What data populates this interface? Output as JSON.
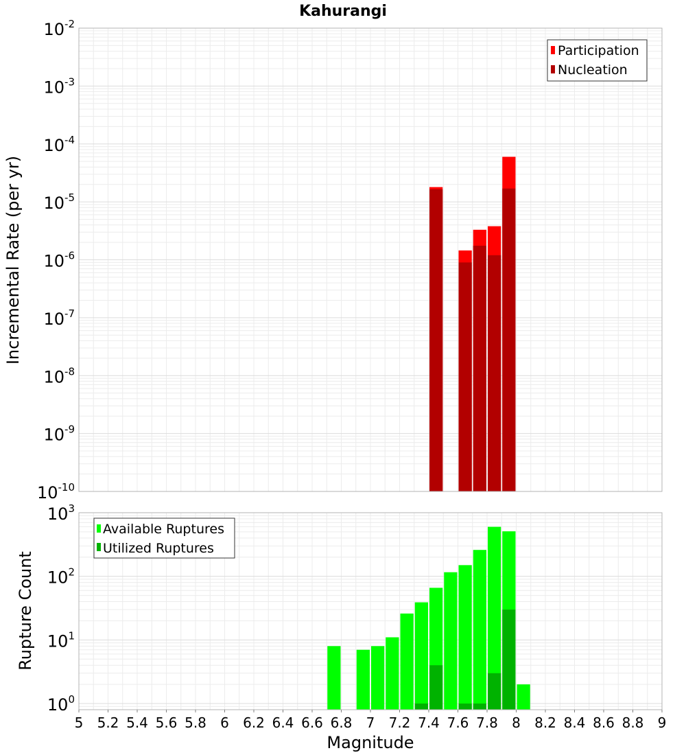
{
  "title": "Kahurangi",
  "colors": {
    "participation": "#ff0000",
    "nucleation": "#b20000",
    "available": "#00ff00",
    "utilized": "#00b200",
    "grid": "#e8e8e8",
    "frame": "#b3b3b3"
  },
  "chart_data": [
    {
      "type": "bar",
      "scale": "log",
      "title": "Kahurangi",
      "xlabel": "Magnitude",
      "ylabel": "Incremental Rate (per yr)",
      "xlim": [
        5,
        9
      ],
      "ylim": [
        1e-10,
        0.01
      ],
      "bin_width": 0.1,
      "legend_position": "top-right",
      "y_tick_labels": [
        {
          "base": "10",
          "exp": "-10",
          "value": 1e-10
        },
        {
          "base": "10",
          "exp": "-9",
          "value": 1e-09
        },
        {
          "base": "10",
          "exp": "-8",
          "value": 1e-08
        },
        {
          "base": "10",
          "exp": "-7",
          "value": 1e-07
        },
        {
          "base": "10",
          "exp": "-6",
          "value": 1e-06
        },
        {
          "base": "10",
          "exp": "-5",
          "value": 1e-05
        },
        {
          "base": "10",
          "exp": "-4",
          "value": 0.0001
        },
        {
          "base": "10",
          "exp": "-3",
          "value": 0.001
        },
        {
          "base": "10",
          "exp": "-2",
          "value": 0.01
        }
      ],
      "series": [
        {
          "name": "Participation",
          "color": "#ff0000",
          "x": [
            7.45,
            7.65,
            7.75,
            7.85,
            7.95
          ],
          "values": [
            1.8e-05,
            1.45e-06,
            3.3e-06,
            3.8e-06,
            6e-05
          ]
        },
        {
          "name": "Nucleation",
          "color": "#b20000",
          "x": [
            7.45,
            7.65,
            7.75,
            7.85,
            7.95
          ],
          "values": [
            1.65e-05,
            9e-07,
            1.75e-06,
            1.2e-06,
            1.7e-05
          ]
        }
      ]
    },
    {
      "type": "bar",
      "scale": "log",
      "xlabel": "Magnitude",
      "ylabel": "Rupture Count",
      "xlim": [
        5,
        9
      ],
      "ylim": [
        0.8,
        1000
      ],
      "bin_width": 0.1,
      "legend_position": "top-left",
      "x_tick_labels": [
        "5",
        "5.2",
        "5.4",
        "5.6",
        "5.8",
        "6",
        "6.2",
        "6.4",
        "6.6",
        "6.8",
        "7",
        "7.2",
        "7.4",
        "7.6",
        "7.8",
        "8",
        "8.2",
        "8.4",
        "8.6",
        "8.8",
        "9"
      ],
      "y_tick_labels": [
        {
          "base": "10",
          "exp": "0",
          "value": 1
        },
        {
          "base": "10",
          "exp": "1",
          "value": 10
        },
        {
          "base": "10",
          "exp": "2",
          "value": 100
        },
        {
          "base": "10",
          "exp": "3",
          "value": 1000
        }
      ],
      "series": [
        {
          "name": "Available Ruptures",
          "color": "#00ff00",
          "x": [
            6.75,
            6.95,
            7.05,
            7.15,
            7.25,
            7.35,
            7.45,
            7.55,
            7.65,
            7.75,
            7.85,
            7.95,
            8.05
          ],
          "values": [
            8,
            7,
            8,
            11,
            26,
            39,
            66,
            116,
            150,
            260,
            600,
            510,
            2
          ]
        },
        {
          "name": "Utilized Ruptures",
          "color": "#00b200",
          "x": [
            7.35,
            7.45,
            7.65,
            7.75,
            7.85,
            7.95
          ],
          "values": [
            1,
            4,
            1,
            1,
            3,
            30
          ]
        }
      ]
    }
  ]
}
